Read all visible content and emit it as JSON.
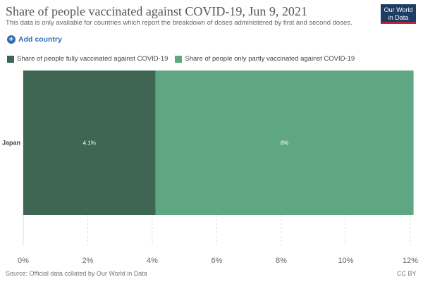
{
  "header": {
    "title": "Share of people vaccinated against COVID-19, Jun 9, 2021",
    "subtitle": "This data is only available for countries which report the breakdown of doses administered by first and second doses.",
    "logo_line1": "Our World",
    "logo_line2": "in Data"
  },
  "controls": {
    "add_country_label": "Add country"
  },
  "colors": {
    "fully": "#3e6652",
    "partly": "#5fa683",
    "grid": "#dddddd",
    "axis_text": "#666666",
    "bar_label": "#ffffff"
  },
  "footer": {
    "source": "Source: Official data collated by Our World in Data",
    "license": "CC BY"
  },
  "chart_data": {
    "type": "bar",
    "orientation": "horizontal",
    "stacked": true,
    "categories": [
      "Japan"
    ],
    "series": [
      {
        "name": "Share of people fully vaccinated against COVID-19",
        "values": [
          4.1
        ],
        "labels": [
          "4.1%"
        ]
      },
      {
        "name": "Share of people only partly vaccinated against COVID-19",
        "values": [
          8.0
        ],
        "labels": [
          "8%"
        ]
      }
    ],
    "xlim": [
      0,
      12
    ],
    "xticks": [
      0,
      2,
      4,
      6,
      8,
      10,
      12
    ],
    "xtick_labels": [
      "0%",
      "2%",
      "4%",
      "6%",
      "8%",
      "10%",
      "12%"
    ],
    "grid": true,
    "legend_position": "top-left"
  }
}
